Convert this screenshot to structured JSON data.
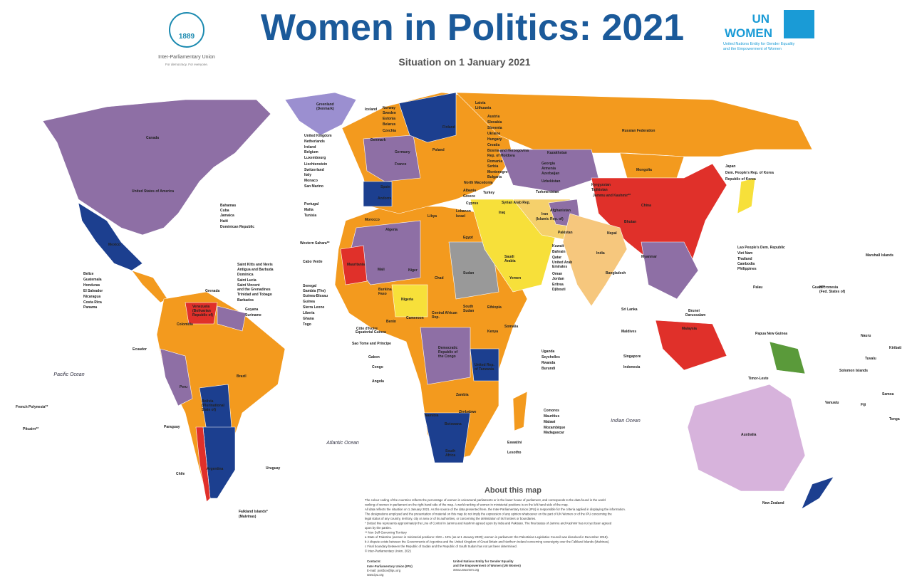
{
  "header": {
    "title": "Women in Politics: 2021",
    "subtitle": "Situation on 1 January 2021",
    "ipu_year": "1889",
    "ipu_name": "Inter-Parliamentary Union",
    "ipu_motto": "For democracy. For everyone.",
    "unwomen_un": "UN",
    "unwomen_name": "WOMEN",
    "unwomen_sub": [
      "United Nations Entity for Gender Equality",
      "and the Empowerment of Women"
    ]
  },
  "oceans": [
    "Pacific Ocean",
    "Atlantic Ocean",
    "Indian Ocean"
  ],
  "countries": [
    "Canada",
    "United States of America",
    "Mexico",
    "Greenland",
    "(Denmark)",
    "Iceland",
    "Norway",
    "Sweden",
    "Estonia",
    "Belarus",
    "Czechia",
    "Latvia",
    "Lithuania",
    "Austria",
    "Slovakia",
    "Slovenia",
    "Ukraine",
    "Hungary",
    "Croatia",
    "Bosnia and Herzegovina",
    "Rep. of Moldova",
    "Romania",
    "Serbia",
    "Montenegro",
    "Bulgaria",
    "United Kingdom",
    "Netherlands",
    "Ireland",
    "Belgium",
    "Luxembourg",
    "Liechtenstein",
    "Switzerland",
    "Italy",
    "Monaco",
    "San Marino",
    "Portugal",
    "Malta",
    "Tunisia",
    "Denmark",
    "Finland",
    "Poland",
    "Germany",
    "France",
    "Spain",
    "Andorra",
    "Greece",
    "Albania",
    "North Macedonia",
    "Turkey",
    "Cyprus",
    "Lebanon",
    "Israel",
    "Syrian Arab Rep.",
    "Iraq",
    "Iran",
    "(Islamic Rep. of)",
    "Kazakhstan",
    "Georgia",
    "Armenia",
    "Azerbaijan",
    "Uzbekistan",
    "Turkmenistan",
    "Kyrgyzstan",
    "Tajikistan",
    "Jammu and Kashmir**",
    "Afghanistan",
    "Pakistan",
    "Russian Federation",
    "Mongolia",
    "China",
    "Japan",
    "Dem. People's Rep. of Korea",
    "Republic of Korea",
    "Bhutan",
    "Nepal",
    "India",
    "Bangladesh",
    "Myanmar",
    "Sri Lanka",
    "Maldives",
    "Lao People's Dem. Republic",
    "Viet Nam",
    "Thailand",
    "Cambodia",
    "Philippines",
    "Brunei",
    "Darussalam",
    "Malaysia",
    "Singapore",
    "Indonesia",
    "Papua New Guinea",
    "Solomon Islands",
    "Timor-Leste",
    "Australia",
    "New Zealand",
    "Marshall Islands",
    "Micronesia",
    "(Fed. States of)",
    "Palau",
    "Guam**",
    "Nauru",
    "Kiribati",
    "Tuvalu",
    "Samoa",
    "Vanuatu",
    "Fiji",
    "Tonga",
    "Kuwait",
    "Bahrain",
    "Qatar",
    "United Arab",
    "Emirates",
    "Oman",
    "Jordan",
    "Eritrea",
    "Djibouti",
    "Saudi",
    "Arabia",
    "Yemen",
    "Egypt",
    "Libya",
    "Sudan",
    "South",
    "Sudan",
    "Ethiopia",
    "Somalia",
    "Kenya",
    "Uganda",
    "Seychelles",
    "Rwanda",
    "Burundi",
    "United Rep.",
    "of Tanzania",
    "Democratic",
    "Republic of",
    "the Congo",
    "Zambia",
    "Zimbabwe",
    "Comoros",
    "Mauritius",
    "Malawi",
    "Mozambique",
    "Madagascar",
    "Namibia",
    "Botswana",
    "South",
    "Africa",
    "Eswatini",
    "Lesotho",
    "Angola",
    "Congo",
    "Gabon",
    "Sao Tome and Principe",
    "Equatorial Guinea",
    "Cameroon",
    "Central African",
    "Rep.",
    "Nigeria",
    "Chad",
    "Niger",
    "Mali",
    "Mauritania",
    "Algeria",
    "Morocco",
    "Western Sahara**",
    "Cabo Verde",
    "Senegal",
    "Gambia (The)",
    "Guinea-Bissau",
    "Guinea",
    "Sierra Leone",
    "Liberia",
    "Ghana",
    "Togo",
    "Burkina",
    "Faso",
    "Benin",
    "Côte d'Ivoire",
    "Bahamas",
    "Cuba",
    "Jamaica",
    "Haiti",
    "Dominican Republic",
    "Saint Kitts and Nevis",
    "Antigua and Barbuda",
    "Dominica",
    "Saint Lucia",
    "Saint Vincent",
    "and the Grenadines",
    "Trinidad and Tobago",
    "Barbados",
    "Belize",
    "Guatemala",
    "Honduras",
    "El Salvador",
    "Nicaragua",
    "Costa Rica",
    "Panama",
    "Grenada",
    "Venezuela",
    "(Bolivarian",
    "Republic of)",
    "Guyana",
    "Suriname",
    "Colombia",
    "Ecuador",
    "Peru",
    "Brazil",
    "Bolivia",
    "(Plurinational",
    "State of)",
    "Paraguay",
    "Chile",
    "Argentina",
    "Uruguay",
    "Falkland Islands*",
    "(Malvinas)",
    "French Polynesia**",
    "Pitcairn**"
  ],
  "about": {
    "title": "About this map",
    "paragraphs": [
      "The colour coding of the countries reflects the percentage of women in unicameral parliaments or in the lower house of parliament, and corresponds to the data found in the world",
      "ranking of women in parliament on the right-hand side of the map. A world ranking of women in ministerial positions is on the left-hand side of the map.",
      "All data reflects the situation on 1 January 2021. As the source of the data presented here, the Inter-Parliamentary Union (IPU) is responsible for the criteria applied in displaying the information.",
      "The designations employed and the presentation of material on this map do not imply the expression of any opinion whatsoever on the part of UN Women or of the IPU concerning the",
      "legal status of any country, territory, city or area or of its authorities, or concerning the delimitation of its frontiers or boundaries.",
      "* Dotted line represents approximately the Line of Control in Jammu and Kashmir agreed upon by India and Pakistan. The final status of Jammu and Kashmir has not yet been agreed",
      "upon by the parties.",
      "** Non Self-Governing Territory",
      "a  State of Palestine (women in ministerial positions: 3/23 = 13% (as at 1 January 2020); women in parliament: the Palestinian Legislative Council was dissolved in December 2018).",
      "b  A dispute exists between the Governments of Argentina and the United Kingdom of Great Britain and Northern Ireland concerning sovereignty over the Falkland Islands (Malvinas).",
      "c  Final boundary between the Republic of Sudan and the Republic of South Sudan has not yet been determined.",
      "© Inter-Parliamentary Union, 2021"
    ],
    "contacts_title": "Contacts:",
    "contacts": [
      [
        "Inter-Parliamentary Union (IPU)",
        "E-mail: postbox@ipu.org",
        "www.ipu.org"
      ],
      [
        "United Nations Entity for Gender Equality",
        "and the Empowerment of Women (UN Women)",
        "www.unwomen.org"
      ]
    ]
  }
}
